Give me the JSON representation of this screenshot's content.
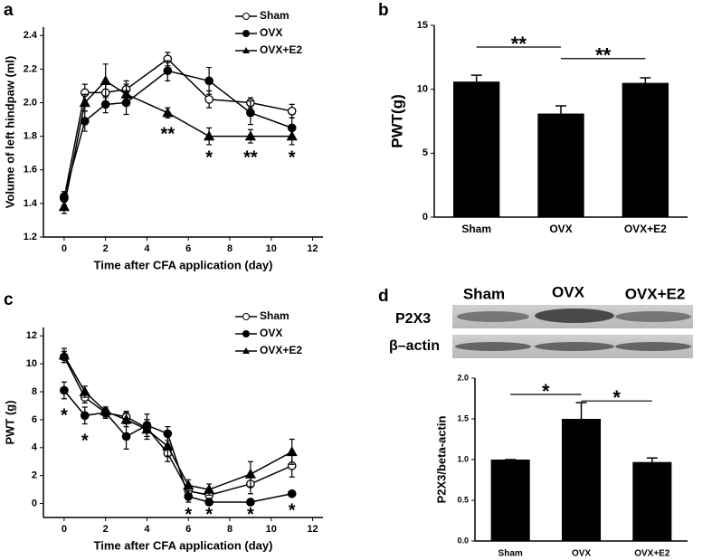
{
  "chart_data": [
    {
      "type": "line",
      "panel": "a",
      "xlabel": "Time after CFA application (day)",
      "ylabel": "Volume of left hindpaw (ml)",
      "x": [
        0,
        1,
        2,
        3,
        5,
        7,
        9,
        11
      ],
      "series": [
        {
          "name": "Sham",
          "color": "#000000",
          "marker": "open-circle",
          "values": [
            1.43,
            2.06,
            2.06,
            2.08,
            2.26,
            2.02,
            2.0,
            1.95
          ],
          "errors": [
            0.04,
            0.05,
            0.06,
            0.05,
            0.04,
            0.05,
            0.03,
            0.04
          ]
        },
        {
          "name": "OVX",
          "color": "#000000",
          "marker": "filled-circle",
          "values": [
            1.44,
            1.89,
            1.99,
            2.0,
            2.19,
            2.13,
            1.94,
            1.85
          ],
          "errors": [
            0.03,
            0.06,
            0.05,
            0.07,
            0.06,
            0.08,
            0.07,
            0.06
          ]
        },
        {
          "name": "OVX+E2",
          "color": "#000000",
          "marker": "triangle",
          "values": [
            1.38,
            2.0,
            2.13,
            2.05,
            1.94,
            1.8,
            1.8,
            1.8
          ],
          "errors": [
            0.04,
            0.05,
            0.1,
            0.06,
            0.03,
            0.05,
            0.04,
            0.05
          ]
        }
      ],
      "annotations": [
        {
          "text": "**",
          "x": 5,
          "y": 1.83
        },
        {
          "text": "*",
          "x": 7,
          "y": 1.69
        },
        {
          "text": "**",
          "x": 9,
          "y": 1.69
        },
        {
          "text": "*",
          "x": 11,
          "y": 1.69
        }
      ],
      "xlim": [
        -1,
        12.5
      ],
      "xticks": [
        0,
        2,
        4,
        6,
        8,
        10,
        12
      ],
      "ylim": [
        1.2,
        2.45
      ],
      "yticks": [
        1.2,
        1.4,
        1.6,
        1.8,
        {
          "value": 2.0,
          "label": "2.0"
        },
        2.2,
        2.4
      ],
      "legend": "upper-right"
    },
    {
      "type": "bar",
      "panel": "b",
      "ylabel": "PWT(g)",
      "categories": [
        "Sham",
        "OVX",
        "OVX+E2"
      ],
      "values": [
        10.6,
        8.1,
        10.5
      ],
      "errors": [
        0.5,
        0.6,
        0.4
      ],
      "color": "#000000",
      "brackets": [
        {
          "text": "**",
          "between": [
            "Sham",
            "OVX"
          ],
          "y": 13.3
        },
        {
          "text": "**",
          "between": [
            "OVX",
            "OVX+E2"
          ],
          "y": 12.4
        }
      ],
      "ylim": [
        0,
        15
      ],
      "yticks": [
        0,
        5,
        10,
        15
      ]
    },
    {
      "type": "line",
      "panel": "c",
      "xlabel": "Time after CFA application (day)",
      "ylabel": "PWT (g)",
      "x": [
        0,
        1,
        2,
        3,
        4,
        5,
        6,
        7,
        9,
        11
      ],
      "series": [
        {
          "name": "Sham",
          "color": "#000000",
          "marker": "open-circle",
          "values": [
            10.5,
            7.6,
            6.5,
            6.2,
            5.4,
            3.6,
            0.9,
            0.6,
            1.4,
            2.7
          ],
          "errors": [
            0.4,
            0.4,
            0.3,
            0.4,
            0.6,
            0.6,
            0.3,
            0.3,
            0.7,
            0.8
          ]
        },
        {
          "name": "OVX",
          "color": "#000000",
          "marker": "filled-circle",
          "values": [
            8.1,
            6.3,
            6.5,
            4.8,
            5.6,
            5.0,
            0.5,
            0.1,
            0.1,
            0.7
          ],
          "errors": [
            0.6,
            0.6,
            0.4,
            0.9,
            0.8,
            0.5,
            0.4,
            0.2,
            0.2,
            0.2
          ]
        },
        {
          "name": "OVX+E2",
          "color": "#000000",
          "marker": "triangle",
          "values": [
            10.6,
            8.0,
            6.6,
            6.0,
            5.3,
            4.1,
            1.3,
            1.0,
            2.1,
            3.7
          ],
          "errors": [
            0.5,
            0.4,
            0.3,
            0.5,
            0.7,
            0.7,
            0.4,
            0.4,
            0.9,
            0.9
          ]
        }
      ],
      "annotations": [
        {
          "text": "*",
          "x": 0,
          "y": 6.5
        },
        {
          "text": "*",
          "x": 1,
          "y": 4.7
        },
        {
          "text": "*",
          "x": 6,
          "y": -0.6
        },
        {
          "text": "*",
          "x": 7,
          "y": -0.6
        },
        {
          "text": "*",
          "x": 9,
          "y": -0.6
        },
        {
          "text": "*",
          "x": 11,
          "y": -0.3
        }
      ],
      "xlim": [
        -1,
        12.5
      ],
      "xticks": [
        0,
        2,
        4,
        6,
        8,
        10,
        12
      ],
      "ylim": [
        -1,
        12.6
      ],
      "yticks": [
        0,
        2,
        4,
        6,
        8,
        10,
        12
      ],
      "legend": "upper-right"
    },
    {
      "type": "bar",
      "panel": "d",
      "ylabel": "P2X3/beta-actin",
      "categories": [
        "Sham",
        "OVX",
        "OVX+E2"
      ],
      "values": [
        1.0,
        1.5,
        0.97
      ],
      "errors": [
        0.0,
        0.2,
        0.05
      ],
      "color": "#000000",
      "brackets": [
        {
          "text": "*",
          "between": [
            "Sham",
            "OVX"
          ],
          "y": 1.8
        },
        {
          "text": "*",
          "between": [
            "OVX",
            "OVX+E2"
          ],
          "y": 1.72
        }
      ],
      "ylim": [
        0,
        2.0
      ],
      "yticks": [
        {
          "value": 0,
          "label": "0.0"
        },
        0.5,
        {
          "value": 1,
          "label": "1.0"
        },
        1.5,
        {
          "value": 2,
          "label": "2.0"
        }
      ]
    }
  ],
  "blot": {
    "lanes": [
      "Sham",
      "OVX",
      "OVX+E2"
    ],
    "rows": [
      "P2X3",
      "β–actin"
    ]
  }
}
